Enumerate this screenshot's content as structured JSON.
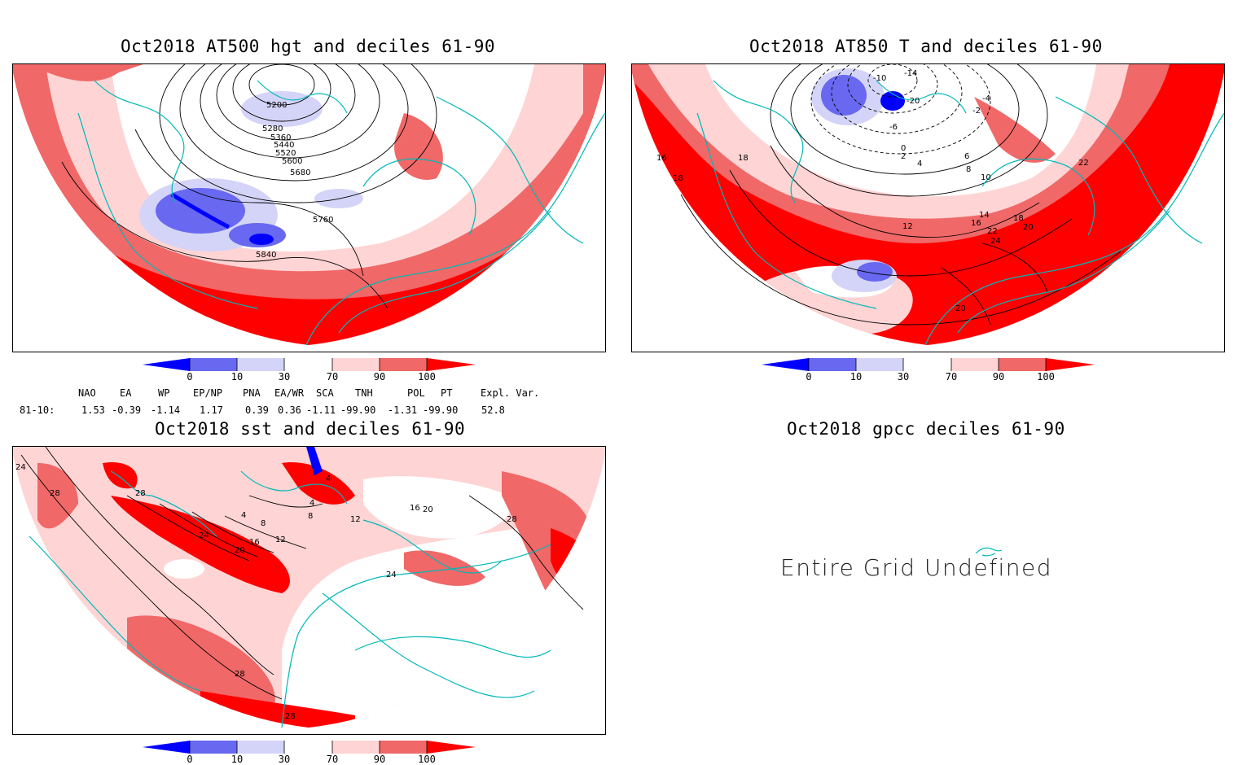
{
  "panels": {
    "hgt500": {
      "title": "Oct2018 AT500 hgt and deciles 61-90",
      "contour_labels": [
        "5200",
        "5280",
        "5360",
        "5440",
        "5520",
        "5600",
        "5680",
        "5760",
        "5840"
      ]
    },
    "t850": {
      "title": "Oct2018 AT850 T and deciles 61-90",
      "contour_labels": [
        "-14",
        "-10",
        "-20",
        "-6",
        "-4",
        "-2",
        "0",
        "2",
        "4",
        "6",
        "8",
        "10",
        "12",
        "14",
        "16",
        "18",
        "20",
        "22",
        "24",
        "18",
        "16",
        "18",
        "22",
        "20"
      ]
    },
    "sst": {
      "title": "Oct2018 sst and deciles 61-90",
      "contour_labels": [
        "24",
        "28",
        "28",
        "24",
        "20",
        "16",
        "12",
        "8",
        "4",
        "4",
        "8",
        "4",
        "12",
        "16",
        "20",
        "24",
        "28",
        "28",
        "28"
      ]
    },
    "gpcc": {
      "title": "Oct2018 gpcc deciles 61-90",
      "message": "Entire Grid Undefined"
    }
  },
  "colorbar": {
    "labels": [
      "0",
      "10",
      "30",
      "70",
      "90",
      "100"
    ],
    "colors": [
      "#0000ff",
      "#6868f0",
      "#d4d4f8",
      "#ffffff",
      "#ffd4d4",
      "#f06868",
      "#ff0000"
    ]
  },
  "indices": {
    "headers": [
      "NAO",
      "EA",
      "WP",
      "EP/NP",
      "PNA",
      "EA/WR",
      "SCA",
      "TNH",
      "POL",
      "PT",
      "Expl. Var."
    ],
    "row_label": "81-10:",
    "values": [
      "1.53",
      "-0.39",
      "-1.14",
      "1.17",
      "0.39",
      "0.36",
      "-1.11",
      "-99.90",
      "-1.31",
      "-99.90",
      "52.8"
    ]
  }
}
